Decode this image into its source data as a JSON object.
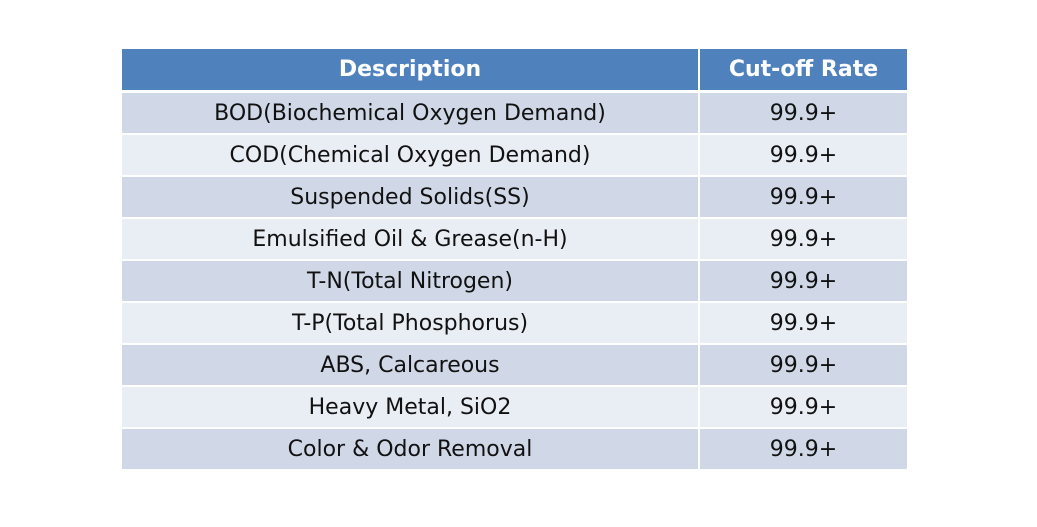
{
  "table": {
    "headers": {
      "description": "Description",
      "rate": "Cut-off Rate"
    },
    "rows": [
      {
        "description": "BOD(Biochemical Oxygen Demand)",
        "rate": "99.9+"
      },
      {
        "description": "COD(Chemical Oxygen Demand)",
        "rate": "99.9+"
      },
      {
        "description": "Suspended Solids(SS)",
        "rate": "99.9+"
      },
      {
        "description": "Emulsified Oil & Grease(n-H)",
        "rate": "99.9+"
      },
      {
        "description": "T-N(Total Nitrogen)",
        "rate": "99.9+"
      },
      {
        "description": "T-P(Total Phosphorus)",
        "rate": "99.9+"
      },
      {
        "description": "ABS, Calcareous",
        "rate": "99.9+"
      },
      {
        "description": "Heavy Metal, SiO2",
        "rate": "99.9+"
      },
      {
        "description": "Color & Odor Removal",
        "rate": "99.9+"
      }
    ]
  },
  "colors": {
    "header_bg": "#4f81bd",
    "row_odd_bg": "#d0d8e8",
    "row_even_bg": "#e9edf4"
  }
}
